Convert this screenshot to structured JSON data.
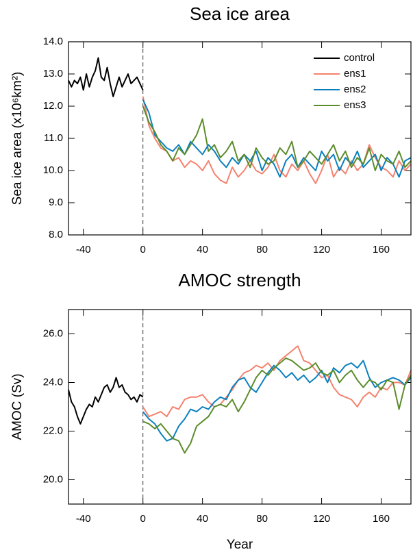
{
  "chart_data": [
    {
      "type": "line",
      "title": "Sea ice area",
      "ylabel": "Sea ice area (x10⁶km²)",
      "xlim": [
        -50,
        180
      ],
      "xticks": [
        -40,
        0,
        40,
        80,
        120,
        160
      ],
      "ylim": [
        8,
        14
      ],
      "yticks": [
        {
          "value": 8,
          "label": "8.0"
        },
        {
          "value": 9,
          "label": "9.0"
        },
        {
          "value": 10,
          "label": "10.0"
        },
        {
          "value": 11,
          "label": "11.0"
        },
        {
          "value": 12,
          "label": "12.0"
        },
        {
          "value": 13,
          "label": "13.0"
        },
        {
          "value": 14,
          "label": "14.0"
        }
      ],
      "vline": 0,
      "legend": "upper right",
      "series": [
        {
          "name": "control",
          "color": "#000000",
          "x": [
            -50,
            -48,
            -46,
            -44,
            -42,
            -40,
            -38,
            -36,
            -34,
            -32,
            -30,
            -28,
            -26,
            -24,
            -22,
            -20,
            -18,
            -16,
            -14,
            -12,
            -10,
            -8,
            -6,
            -4,
            -2,
            0
          ],
          "values": [
            12.8,
            12.6,
            12.8,
            12.7,
            12.9,
            12.5,
            13.0,
            12.6,
            12.9,
            13.1,
            13.5,
            12.9,
            12.8,
            13.2,
            12.7,
            12.3,
            12.6,
            12.9,
            12.6,
            12.8,
            13.0,
            12.7,
            12.8,
            12.9,
            12.7,
            12.5
          ]
        },
        {
          "name": "ens1",
          "color": "#f4826e",
          "x": [
            0,
            4,
            8,
            12,
            16,
            20,
            24,
            28,
            32,
            36,
            40,
            44,
            48,
            52,
            56,
            60,
            64,
            68,
            72,
            76,
            80,
            84,
            88,
            92,
            96,
            100,
            104,
            108,
            112,
            116,
            120,
            124,
            128,
            132,
            136,
            140,
            144,
            148,
            152,
            156,
            160,
            164,
            168,
            172,
            176,
            180
          ],
          "values": [
            12.3,
            11.4,
            11.0,
            10.7,
            10.6,
            10.3,
            10.4,
            10.1,
            10.3,
            10.2,
            10.0,
            10.3,
            9.9,
            9.7,
            9.6,
            10.1,
            9.8,
            10.0,
            10.3,
            10.0,
            9.9,
            10.1,
            10.5,
            10.0,
            9.8,
            10.2,
            10.0,
            10.3,
            9.9,
            9.6,
            10.0,
            10.5,
            9.8,
            10.1,
            9.9,
            10.3,
            10.0,
            10.2,
            10.8,
            10.4,
            10.1,
            10.0,
            9.8,
            10.3,
            10.0,
            10.2
          ]
        },
        {
          "name": "ens2",
          "color": "#0a7fbf",
          "x": [
            0,
            4,
            8,
            12,
            16,
            20,
            24,
            28,
            32,
            36,
            40,
            44,
            48,
            52,
            56,
            60,
            64,
            68,
            72,
            76,
            80,
            84,
            88,
            92,
            96,
            100,
            104,
            108,
            112,
            116,
            120,
            124,
            128,
            132,
            136,
            140,
            144,
            148,
            152,
            156,
            160,
            164,
            168,
            172,
            176,
            180
          ],
          "values": [
            12.2,
            11.8,
            11.1,
            10.9,
            10.7,
            10.6,
            10.8,
            10.5,
            10.9,
            10.7,
            10.5,
            10.8,
            10.6,
            10.3,
            10.1,
            10.4,
            10.2,
            10.5,
            10.3,
            10.6,
            10.0,
            10.4,
            10.2,
            9.8,
            10.3,
            10.5,
            10.1,
            10.4,
            10.2,
            10.0,
            10.6,
            10.3,
            10.5,
            10.0,
            10.4,
            10.2,
            10.6,
            10.1,
            10.3,
            10.5,
            10.0,
            10.4,
            10.2,
            9.8,
            10.3,
            10.4
          ]
        },
        {
          "name": "ens3",
          "color": "#5b8c2a",
          "x": [
            0,
            4,
            8,
            12,
            16,
            20,
            24,
            28,
            32,
            36,
            40,
            44,
            48,
            52,
            56,
            60,
            64,
            68,
            72,
            76,
            80,
            84,
            88,
            92,
            96,
            100,
            104,
            108,
            112,
            116,
            120,
            124,
            128,
            132,
            136,
            140,
            144,
            148,
            152,
            156,
            160,
            164,
            168,
            172,
            176,
            180
          ],
          "values": [
            12.0,
            11.5,
            11.2,
            10.8,
            10.6,
            10.3,
            10.7,
            10.5,
            10.8,
            11.1,
            11.6,
            10.6,
            10.8,
            10.4,
            10.6,
            10.9,
            10.3,
            10.5,
            10.1,
            10.7,
            10.4,
            10.2,
            10.3,
            10.7,
            10.5,
            10.9,
            10.1,
            10.3,
            10.6,
            10.4,
            10.2,
            10.5,
            10.8,
            10.3,
            10.6,
            10.1,
            10.4,
            10.2,
            10.7,
            10.0,
            10.5,
            10.3,
            10.2,
            10.6,
            10.1,
            10.3
          ]
        }
      ]
    },
    {
      "type": "line",
      "title": "AMOC strength",
      "ylabel": "AMOC (Sv)",
      "xlabel": "Year",
      "xlim": [
        -50,
        180
      ],
      "xticks": [
        -40,
        0,
        40,
        80,
        120,
        160
      ],
      "ylim": [
        19,
        27
      ],
      "yticks": [
        {
          "value": 20,
          "label": "20.0"
        },
        {
          "value": 22,
          "label": "22.0"
        },
        {
          "value": 24,
          "label": "24.0"
        },
        {
          "value": 26,
          "label": "26.0"
        }
      ],
      "vline": 0,
      "series": [
        {
          "color": "#000000",
          "x": [
            -50,
            -48,
            -46,
            -44,
            -42,
            -40,
            -38,
            -36,
            -34,
            -32,
            -30,
            -28,
            -26,
            -24,
            -22,
            -20,
            -18,
            -16,
            -14,
            -12,
            -10,
            -8,
            -6,
            -4,
            -2,
            0
          ],
          "values": [
            23.7,
            23.2,
            23.0,
            22.6,
            22.3,
            22.6,
            22.9,
            23.1,
            23.0,
            23.4,
            23.2,
            23.5,
            23.8,
            23.9,
            23.6,
            23.8,
            24.2,
            23.8,
            23.9,
            23.6,
            23.5,
            23.3,
            23.4,
            23.2,
            23.5,
            23.4
          ]
        },
        {
          "color": "#f4826e",
          "x": [
            0,
            4,
            8,
            12,
            16,
            20,
            24,
            28,
            32,
            36,
            40,
            44,
            48,
            52,
            56,
            60,
            64,
            68,
            72,
            76,
            80,
            84,
            88,
            92,
            96,
            100,
            104,
            108,
            112,
            116,
            120,
            124,
            128,
            132,
            136,
            140,
            144,
            148,
            152,
            156,
            160,
            164,
            168,
            172,
            176,
            180
          ],
          "values": [
            23.0,
            22.6,
            22.7,
            22.8,
            22.6,
            23.0,
            22.9,
            23.3,
            23.4,
            23.4,
            23.5,
            23.2,
            23.0,
            23.1,
            23.4,
            23.7,
            24.1,
            24.4,
            24.5,
            24.7,
            24.6,
            24.8,
            24.5,
            24.9,
            25.1,
            25.3,
            25.5,
            24.9,
            24.8,
            24.5,
            24.2,
            24.3,
            23.8,
            23.5,
            23.4,
            23.3,
            23.0,
            23.4,
            23.6,
            23.4,
            23.8,
            23.7,
            24.0,
            24.0,
            23.9,
            24.5
          ]
        },
        {
          "color": "#0a7fbf",
          "x": [
            0,
            4,
            8,
            12,
            16,
            20,
            24,
            28,
            32,
            36,
            40,
            44,
            48,
            52,
            56,
            60,
            64,
            68,
            72,
            76,
            80,
            84,
            88,
            92,
            96,
            100,
            104,
            108,
            112,
            116,
            120,
            124,
            128,
            132,
            136,
            140,
            144,
            148,
            152,
            156,
            160,
            164,
            168,
            172,
            176,
            180
          ],
          "values": [
            22.8,
            22.5,
            22.3,
            21.9,
            21.6,
            21.7,
            22.2,
            22.5,
            22.9,
            22.8,
            23.0,
            22.9,
            23.2,
            23.4,
            23.3,
            23.8,
            24.1,
            24.2,
            23.8,
            23.6,
            24.0,
            24.4,
            24.7,
            24.5,
            24.2,
            24.4,
            24.1,
            24.3,
            24.0,
            24.2,
            24.5,
            24.0,
            24.6,
            24.4,
            24.7,
            24.8,
            24.6,
            24.9,
            24.2,
            23.8,
            24.0,
            24.1,
            24.2,
            24.1,
            23.9,
            24.2
          ]
        },
        {
          "color": "#5b8c2a",
          "x": [
            0,
            4,
            8,
            12,
            16,
            20,
            24,
            28,
            32,
            36,
            40,
            44,
            48,
            52,
            56,
            60,
            64,
            68,
            72,
            76,
            80,
            84,
            88,
            92,
            96,
            100,
            104,
            108,
            112,
            116,
            120,
            124,
            128,
            132,
            136,
            140,
            144,
            148,
            152,
            156,
            160,
            164,
            168,
            172,
            176,
            180
          ],
          "values": [
            22.4,
            22.3,
            22.1,
            22.3,
            22.0,
            21.7,
            21.6,
            21.1,
            21.5,
            22.2,
            22.4,
            22.6,
            23.0,
            23.1,
            23.0,
            23.3,
            22.8,
            23.2,
            23.7,
            24.2,
            24.5,
            24.3,
            24.6,
            24.8,
            25.0,
            24.9,
            24.7,
            24.5,
            24.6,
            24.8,
            24.4,
            24.3,
            24.5,
            24.0,
            24.3,
            24.5,
            24.1,
            23.8,
            24.1,
            24.0,
            23.7,
            24.1,
            24.0,
            22.9,
            23.9,
            24.3
          ]
        }
      ]
    }
  ]
}
